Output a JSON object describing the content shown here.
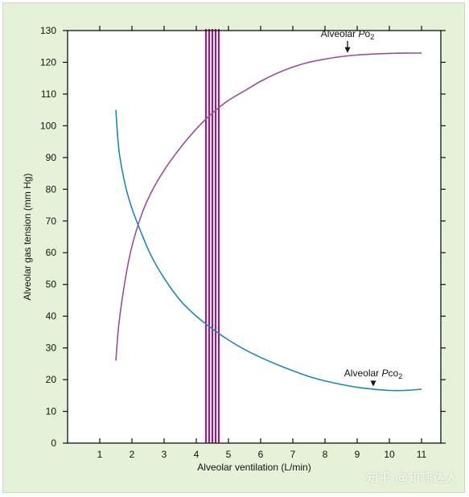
{
  "watermark": "知乎 @知呼达人",
  "colors": {
    "background": "#e6f2d8",
    "plot_background": "#ffffff",
    "po2_line": "#9b4d9b",
    "pco2_line": "#1f86b8",
    "band": "#9b1f7a"
  },
  "chart_data": {
    "type": "line",
    "title": "",
    "xlabel": "Alveolar ventilation (L/min)",
    "ylabel": "Alveolar gas tension (mm Hg)",
    "xlim": [
      0,
      11.6
    ],
    "ylim": [
      0,
      130
    ],
    "xticks": [
      1,
      2,
      3,
      4,
      5,
      6,
      7,
      8,
      9,
      10,
      11
    ],
    "yticks": [
      0,
      10,
      20,
      30,
      40,
      50,
      60,
      70,
      80,
      90,
      100,
      110,
      120,
      130
    ],
    "grid": false,
    "series": [
      {
        "name": "Alveolar Po2",
        "label_prefix": "Alveolar ",
        "label_symbol": "P",
        "label_gas": "o",
        "label_subscript": "2",
        "color": "#9b4d9b",
        "x": [
          1.5,
          1.6,
          1.8,
          2.0,
          2.3,
          2.6,
          3.0,
          3.5,
          4.0,
          4.5,
          5.0,
          5.5,
          6.0,
          6.5,
          7.0,
          7.5,
          8.0,
          8.5,
          9.0,
          9.5,
          10.0,
          10.5,
          11.0
        ],
        "y": [
          26,
          38,
          52,
          62,
          72,
          79,
          86,
          93,
          99,
          104,
          108,
          111,
          114,
          116.5,
          118.5,
          120,
          121,
          121.8,
          122.3,
          122.6,
          122.8,
          122.9,
          122.9
        ]
      },
      {
        "name": "Alveolar Pco2",
        "label_prefix": "Alveolar ",
        "label_symbol": "P",
        "label_gas": "co",
        "label_subscript": "2",
        "color": "#1f86b8",
        "x": [
          1.5,
          1.6,
          1.8,
          2.0,
          2.3,
          2.6,
          3.0,
          3.5,
          4.0,
          4.5,
          5.0,
          5.5,
          6.0,
          6.5,
          7.0,
          7.5,
          8.0,
          8.5,
          9.0,
          9.5,
          10.0,
          10.5,
          11.0
        ],
        "y": [
          105,
          92,
          81,
          74,
          66,
          59,
          52,
          45,
          40,
          36,
          32.5,
          29.5,
          27,
          24.8,
          22.8,
          21,
          19.6,
          18.5,
          17.6,
          17,
          16.6,
          16.6,
          17
        ]
      }
    ],
    "band": {
      "x_start": 4.3,
      "x_end": 4.7,
      "stripes": 5
    },
    "annotations": [
      {
        "series": 0,
        "text_x": 8.7,
        "text_y": 129,
        "arrow_to_x": 8.7,
        "arrow_to_y": 122.2
      },
      {
        "series": 1,
        "text_x": 9.5,
        "text_y": 22,
        "arrow_to_x": 9.5,
        "arrow_to_y": 17.1
      }
    ]
  }
}
